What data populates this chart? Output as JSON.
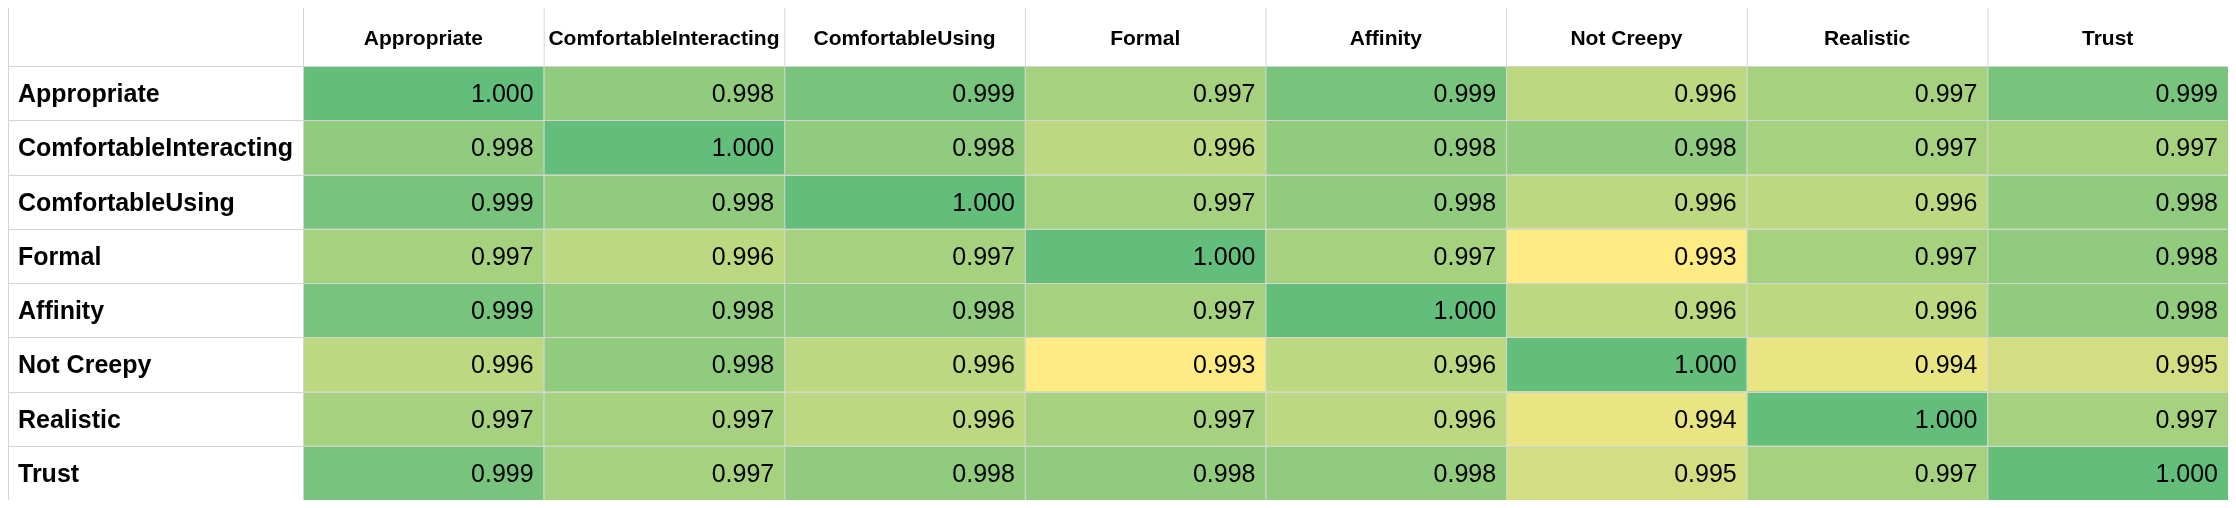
{
  "chart_data": {
    "type": "heatmap",
    "categories": [
      "Appropriate",
      "ComfortableInteracting",
      "ComfortableUsing",
      "Formal",
      "Affinity",
      "Not Creepy",
      "Realistic",
      "Trust"
    ],
    "y_categories": [
      "Appropriate",
      "ComfortableInteracting",
      "ComfortableUsing",
      "Formal",
      "Affinity",
      "Not Creepy",
      "Realistic",
      "Trust"
    ],
    "cells": [
      [
        1.0,
        0.998,
        0.999,
        0.997,
        0.999,
        0.996,
        0.997,
        0.999
      ],
      [
        0.998,
        1.0,
        0.998,
        0.996,
        0.998,
        0.998,
        0.997,
        0.997
      ],
      [
        0.999,
        0.998,
        1.0,
        0.997,
        0.998,
        0.996,
        0.996,
        0.998
      ],
      [
        0.997,
        0.996,
        0.997,
        1.0,
        0.997,
        0.993,
        0.997,
        0.998
      ],
      [
        0.999,
        0.998,
        0.998,
        0.997,
        1.0,
        0.996,
        0.996,
        0.998
      ],
      [
        0.996,
        0.998,
        0.996,
        0.993,
        0.996,
        1.0,
        0.994,
        0.995
      ],
      [
        0.997,
        0.997,
        0.996,
        0.997,
        0.996,
        0.994,
        1.0,
        0.997
      ],
      [
        0.999,
        0.997,
        0.998,
        0.998,
        0.998,
        0.995,
        0.997,
        1.0
      ]
    ],
    "cell_labels": [
      [
        "1.000",
        "0.998",
        "0.999",
        "0.997",
        "0.999",
        "0.996",
        "0.997",
        "0.999"
      ],
      [
        "0.998",
        "1.000",
        "0.998",
        "0.996",
        "0.998",
        "0.998",
        "0.997",
        "0.997"
      ],
      [
        "0.999",
        "0.998",
        "1.000",
        "0.997",
        "0.998",
        "0.996",
        "0.996",
        "0.998"
      ],
      [
        "0.997",
        "0.996",
        "0.997",
        "1.000",
        "0.997",
        "0.993",
        "0.997",
        "0.998"
      ],
      [
        "0.999",
        "0.998",
        "0.998",
        "0.997",
        "1.000",
        "0.996",
        "0.996",
        "0.998"
      ],
      [
        "0.996",
        "0.998",
        "0.996",
        "0.993",
        "0.996",
        "1.000",
        "0.994",
        "0.995"
      ],
      [
        "0.997",
        "0.997",
        "0.996",
        "0.997",
        "0.996",
        "0.994",
        "1.000",
        "0.997"
      ],
      [
        "0.999",
        "0.997",
        "0.998",
        "0.998",
        "0.998",
        "0.995",
        "0.997",
        "1.000"
      ]
    ]
  }
}
